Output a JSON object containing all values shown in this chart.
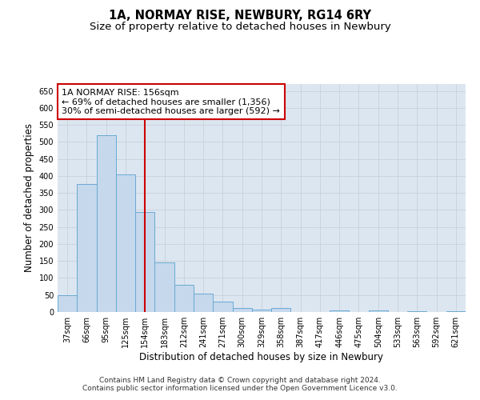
{
  "title_line1": "1A, NORMAY RISE, NEWBURY, RG14 6RY",
  "title_line2": "Size of property relative to detached houses in Newbury",
  "xlabel": "Distribution of detached houses by size in Newbury",
  "ylabel": "Number of detached properties",
  "categories": [
    "37sqm",
    "66sqm",
    "95sqm",
    "125sqm",
    "154sqm",
    "183sqm",
    "212sqm",
    "241sqm",
    "271sqm",
    "300sqm",
    "329sqm",
    "358sqm",
    "387sqm",
    "417sqm",
    "446sqm",
    "475sqm",
    "504sqm",
    "533sqm",
    "563sqm",
    "592sqm",
    "621sqm"
  ],
  "values": [
    50,
    375,
    520,
    405,
    295,
    145,
    80,
    55,
    30,
    12,
    8,
    12,
    0,
    0,
    5,
    0,
    5,
    0,
    3,
    0,
    2
  ],
  "bar_color": "#c5d8ec",
  "bar_edge_color": "#6aaad4",
  "vline_x": 4,
  "vline_color": "#cc0000",
  "annotation_text": "1A NORMAY RISE: 156sqm\n← 69% of detached houses are smaller (1,356)\n30% of semi-detached houses are larger (592) →",
  "annotation_box_color": "#ffffff",
  "annotation_box_edge_color": "#cc0000",
  "ylim": [
    0,
    670
  ],
  "yticks": [
    0,
    50,
    100,
    150,
    200,
    250,
    300,
    350,
    400,
    450,
    500,
    550,
    600,
    650
  ],
  "grid_color": "#c8d0da",
  "background_color": "#dce6f0",
  "footer_line1": "Contains HM Land Registry data © Crown copyright and database right 2024.",
  "footer_line2": "Contains public sector information licensed under the Open Government Licence v3.0.",
  "title_fontsize": 10.5,
  "subtitle_fontsize": 9.5,
  "tick_fontsize": 7,
  "axis_label_fontsize": 8.5,
  "footer_fontsize": 6.5,
  "annotation_fontsize": 8
}
